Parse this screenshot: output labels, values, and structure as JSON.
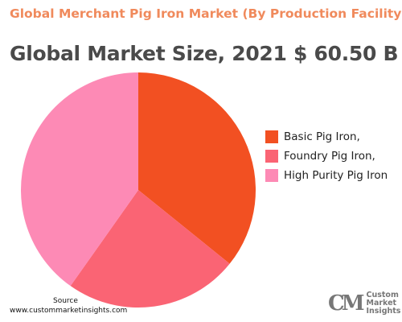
{
  "header": {
    "title": "Global Merchant Pig Iron Market (By Production Facility)",
    "subtitle": "Global Market Size, 2021 $ 60.50 B"
  },
  "chart_data": {
    "type": "pie",
    "title": "Global Merchant Pig Iron Market (By Production Facility)",
    "subtitle": "Global Market Size, 2021 $ 60.50 B",
    "start_angle_deg": 0,
    "direction": "clockwise",
    "slices": [
      {
        "label": "Basic Pig Iron,",
        "value": 35.8,
        "color": "#f25022"
      },
      {
        "label": "Foundry Pig Iron,",
        "value": 24.0,
        "color": "#fa6474"
      },
      {
        "label": "High Purity Pig Iron",
        "value": 40.2,
        "color": "#fd8ab5"
      }
    ],
    "legend_position": "right"
  },
  "footer": {
    "source_label": "Source",
    "source_url": "www.custommarketinsights.com"
  },
  "logo": {
    "mark": "CM",
    "line1": "Custom",
    "line2": "Market",
    "line3": "Insights"
  }
}
